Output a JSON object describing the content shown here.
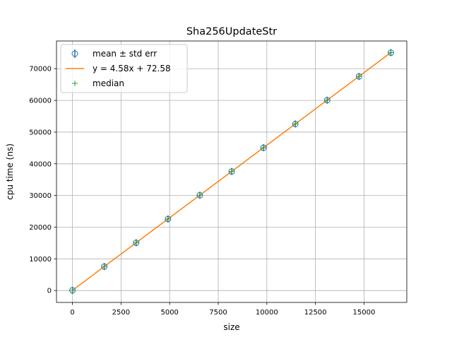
{
  "chart_data": {
    "type": "scatter",
    "title": "Sha256UpdateStr",
    "xlabel": "size",
    "ylabel": "cpu time (ns)",
    "xlim": [
      -820,
      17200
    ],
    "ylim": [
      -3750,
      78750
    ],
    "xticks": [
      0,
      2500,
      5000,
      7500,
      10000,
      12500,
      15000
    ],
    "yticks": [
      0,
      10000,
      20000,
      30000,
      40000,
      50000,
      60000,
      70000
    ],
    "grid": true,
    "legend_position": "upper-left",
    "x": [
      1,
      1638,
      3276,
      4914,
      6552,
      8190,
      9828,
      11466,
      13104,
      14742,
      16380
    ],
    "series": [
      {
        "name": "mean ± std err",
        "style": "errorbar-circle",
        "color": "#1f77b4",
        "values": [
          77,
          7575,
          15076,
          22574,
          30073,
          37571,
          45069,
          52568,
          60066,
          67564,
          75063
        ]
      },
      {
        "name": "y = 4.58x + 72.58",
        "style": "line",
        "color": "#ff7f0e",
        "slope": 4.58,
        "intercept": 72.58
      },
      {
        "name": "median",
        "style": "plus",
        "color": "#2ca02c",
        "values": [
          77,
          7575,
          15076,
          22574,
          30073,
          37571,
          45069,
          52568,
          60066,
          67564,
          75063
        ]
      }
    ]
  }
}
